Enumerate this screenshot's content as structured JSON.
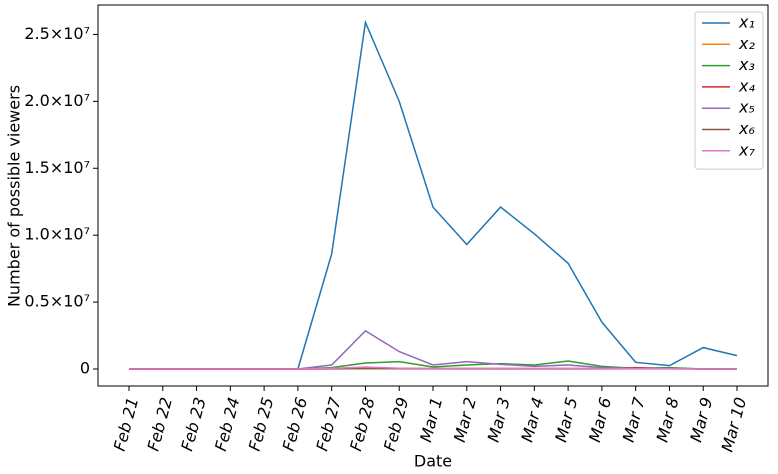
{
  "chart_data": {
    "type": "line",
    "x_label": "Date",
    "y_label": "Number of possible viewers",
    "categories": [
      "Feb 21",
      "Feb 22",
      "Feb 23",
      "Feb 24",
      "Feb 25",
      "Feb 26",
      "Feb 27",
      "Feb 28",
      "Feb 29",
      "Mar 1",
      "Mar 2",
      "Mar 3",
      "Mar 4",
      "Mar 5",
      "Mar 6",
      "Mar 7",
      "Mar 8",
      "Mar 9",
      "Mar 10"
    ],
    "series": [
      {
        "name": "x₁",
        "color": "#1f77b4",
        "values": [
          0,
          0,
          0,
          0,
          0,
          0,
          8600000,
          25900000,
          20000000,
          12100000,
          9300000,
          12100000,
          10100000,
          7900000,
          3500000,
          500000,
          250000,
          1600000,
          1000000
        ]
      },
      {
        "name": "x₂",
        "color": "#ff7f0e",
        "values": [
          0,
          0,
          0,
          0,
          0,
          0,
          20000,
          60000,
          40000,
          30000,
          30000,
          40000,
          30000,
          30000,
          20000,
          80000,
          30000,
          10000,
          10000
        ]
      },
      {
        "name": "x₃",
        "color": "#2ca02c",
        "values": [
          0,
          0,
          0,
          0,
          0,
          0,
          100000,
          450000,
          550000,
          150000,
          300000,
          400000,
          300000,
          600000,
          200000,
          50000,
          100000,
          0,
          0
        ]
      },
      {
        "name": "x₄",
        "color": "#d62728",
        "values": [
          0,
          0,
          0,
          0,
          0,
          0,
          20000,
          50000,
          40000,
          30000,
          40000,
          30000,
          30000,
          40000,
          20000,
          100000,
          30000,
          10000,
          10000
        ]
      },
      {
        "name": "x₅",
        "color": "#9467bd",
        "values": [
          0,
          0,
          0,
          0,
          0,
          0,
          300000,
          2850000,
          1300000,
          300000,
          550000,
          350000,
          200000,
          300000,
          100000,
          50000,
          50000,
          0,
          0
        ]
      },
      {
        "name": "x₆",
        "color": "#8c564b",
        "values": [
          0,
          0,
          0,
          0,
          0,
          0,
          10000,
          30000,
          20000,
          10000,
          10000,
          10000,
          10000,
          10000,
          10000,
          10000,
          10000,
          0,
          0
        ]
      },
      {
        "name": "x₇",
        "color": "#e377c2",
        "values": [
          0,
          0,
          0,
          0,
          0,
          0,
          50000,
          150000,
          60000,
          30000,
          40000,
          50000,
          40000,
          50000,
          30000,
          20000,
          20000,
          10000,
          10000
        ]
      }
    ],
    "ylim": [
      -1270000,
      27200000
    ],
    "yticks": [
      0,
      {
        "value": 5000000,
        "label": "0.5×10⁷"
      },
      {
        "value": 10000000,
        "label": "1.0×10⁷"
      },
      {
        "value": 15000000,
        "label": "1.5×10⁷"
      },
      {
        "value": 20000000,
        "label": "2.0×10⁷"
      },
      {
        "value": 25000000,
        "label": "2.5×10⁷"
      }
    ],
    "grid": false,
    "legend": "upper right"
  }
}
